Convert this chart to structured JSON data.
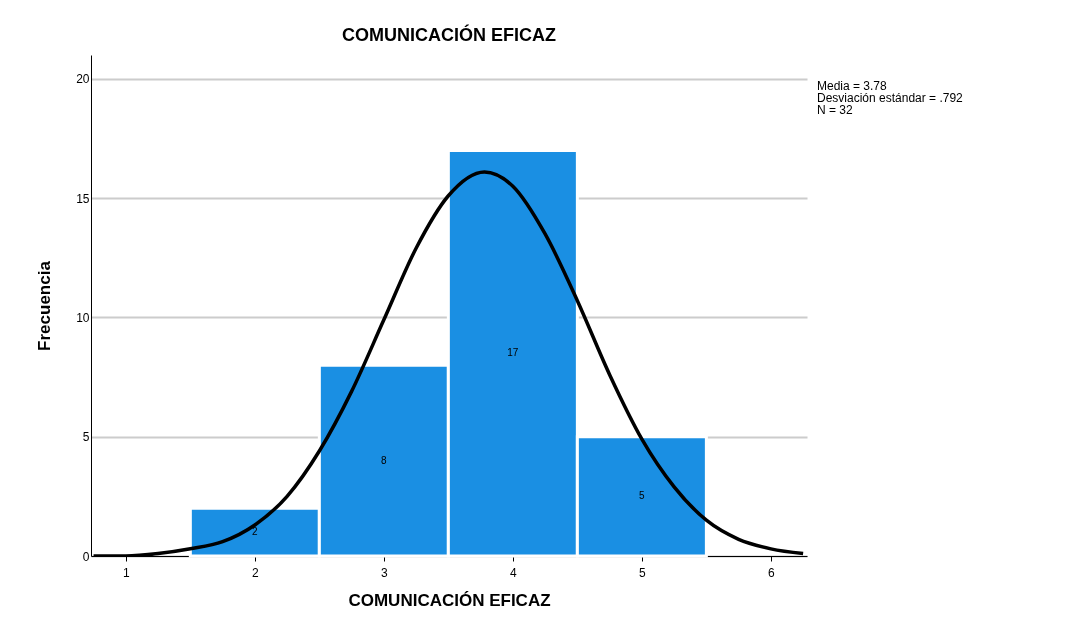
{
  "chart_data": {
    "type": "histogram",
    "title": "COMUNICACIÓN EFICAZ",
    "xlabel": "COMUNICACIÓN EFICAZ",
    "ylabel": "Frecuencia",
    "bins": [
      1.5,
      2.5,
      3.5,
      4.5,
      5.5
    ],
    "values": [
      2,
      8,
      17,
      5
    ],
    "color": "#1a8fe3",
    "value_labels": [
      "2",
      "8",
      "17",
      "5"
    ],
    "series": [
      {
        "type": "line",
        "color": "#000000",
        "x": [
          0.75,
          1,
          1.25,
          1.5,
          1.75,
          2,
          2.25,
          2.5,
          2.75,
          3,
          3.25,
          3.5,
          3.78,
          4,
          4.25,
          4.5,
          4.75,
          5,
          5.25,
          5.5,
          5.75,
          6,
          6.25
        ],
        "values": [
          0.0,
          0.0,
          0.1,
          0.3,
          0.6,
          1.3,
          2.5,
          4.4,
          6.9,
          9.9,
          12.9,
          15.1,
          16.1,
          15.5,
          13.5,
          10.7,
          7.6,
          4.9,
          2.9,
          1.5,
          0.7,
          0.3,
          0.1
        ]
      }
    ],
    "xlim": [
      0.73,
      6.28
    ],
    "xticks": [
      1,
      2,
      3,
      4,
      5,
      6
    ],
    "ylim": [
      0,
      21
    ],
    "yticks": [
      0,
      5,
      10,
      15,
      20
    ],
    "grid": "y",
    "annotations": [
      "Media = 3.78",
      "Desviación estándar = .792",
      "N = 32"
    ]
  }
}
